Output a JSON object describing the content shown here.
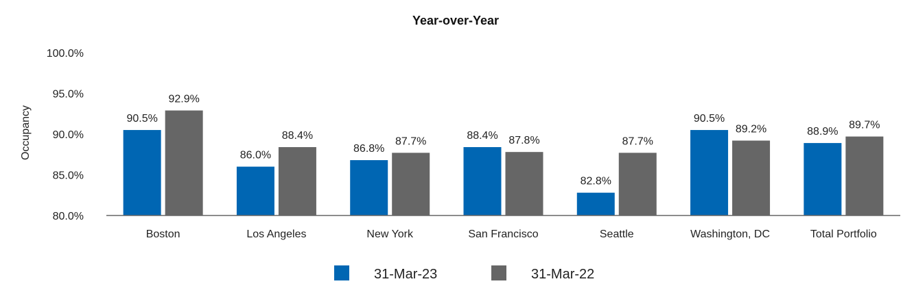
{
  "chart_data": {
    "type": "bar",
    "title": "Year-over-Year",
    "xlabel": "",
    "ylabel": "Occupancy",
    "ylim": [
      80,
      100
    ],
    "yticks": [
      "80.0%",
      "85.0%",
      "90.0%",
      "95.0%",
      "100.0%"
    ],
    "ytick_values": [
      80,
      85,
      90,
      95,
      100
    ],
    "categories": [
      "Boston",
      "Los Angeles",
      "New York",
      "San Francisco",
      "Seattle",
      "Washington, DC",
      "Total Portfolio"
    ],
    "series": [
      {
        "name": "31-Mar-23",
        "color": "#0066b3",
        "values": [
          90.5,
          86.0,
          86.8,
          88.4,
          82.8,
          90.5,
          88.9
        ],
        "labels": [
          "90.5%",
          "86.0%",
          "86.8%",
          "88.4%",
          "82.8%",
          "90.5%",
          "88.9%"
        ]
      },
      {
        "name": "31-Mar-22",
        "color": "#666666",
        "values": [
          92.9,
          88.4,
          87.7,
          87.8,
          87.7,
          89.2,
          89.7
        ],
        "labels": [
          "92.9%",
          "88.4%",
          "87.7%",
          "87.8%",
          "87.7%",
          "89.2%",
          "89.7%"
        ]
      }
    ],
    "grid": false,
    "legend": "bottom-center"
  }
}
